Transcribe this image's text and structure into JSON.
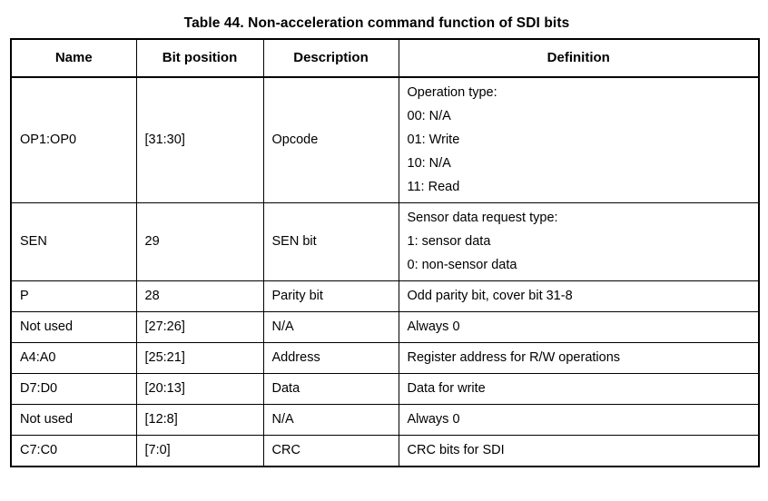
{
  "title": "Table 44. Non-acceleration command function of SDI bits",
  "table": {
    "headers": [
      "Name",
      "Bit position",
      "Description",
      "Definition"
    ],
    "rows": [
      {
        "name": "OP1:OP0",
        "bit_position": "[31:30]",
        "description": "Opcode",
        "definition": [
          "Operation type:",
          "00: N/A",
          "01: Write",
          "10: N/A",
          "11: Read"
        ]
      },
      {
        "name": "SEN",
        "bit_position": "29",
        "description": "SEN bit",
        "definition": [
          "Sensor data request type:",
          "1: sensor data",
          "0: non-sensor data"
        ]
      },
      {
        "name": "P",
        "bit_position": "28",
        "description": "Parity bit",
        "definition": [
          "Odd parity bit, cover bit 31-8"
        ]
      },
      {
        "name": "Not used",
        "bit_position": "[27:26]",
        "description": "N/A",
        "definition": [
          "Always 0"
        ]
      },
      {
        "name": "A4:A0",
        "bit_position": "[25:21]",
        "description": "Address",
        "definition": [
          "Register address for R/W operations"
        ]
      },
      {
        "name": "D7:D0",
        "bit_position": "[20:13]",
        "description": "Data",
        "definition": [
          "Data for write"
        ]
      },
      {
        "name": "Not used",
        "bit_position": "[12:8]",
        "description": "N/A",
        "definition": [
          "Always 0"
        ]
      },
      {
        "name": "C7:C0",
        "bit_position": "[7:0]",
        "description": "CRC",
        "definition": [
          "CRC bits for SDI"
        ]
      }
    ]
  },
  "colors": {
    "text": "#000000",
    "border": "#000000",
    "background": "#ffffff"
  }
}
